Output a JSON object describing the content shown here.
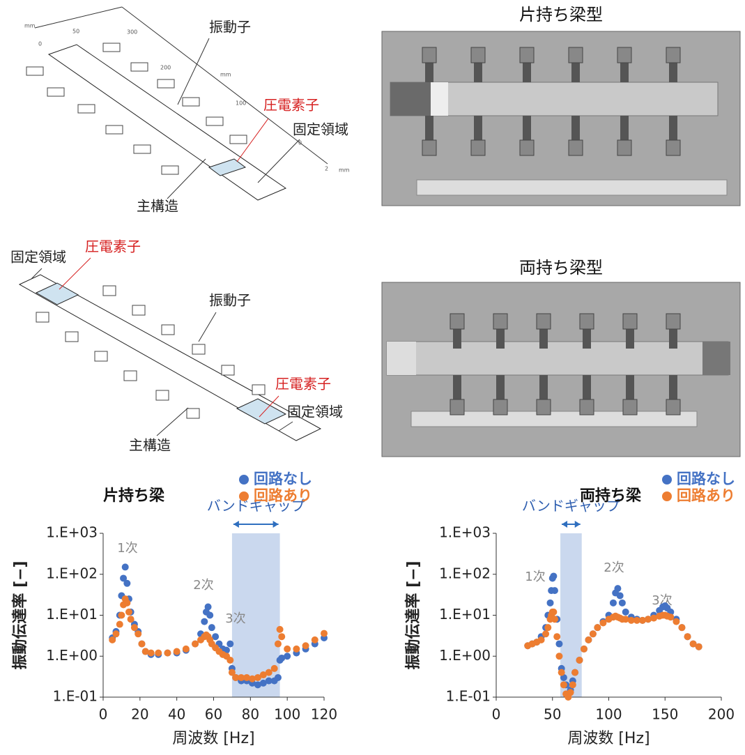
{
  "diagrams": [
    {
      "labels": [
        "振動子",
        "圧電素子",
        "固定領域",
        "主構造"
      ],
      "scale_labels": [
        "mm",
        "50",
        "300",
        "0",
        "200",
        "mm",
        "100",
        "0",
        "2",
        "mm"
      ]
    },
    {
      "labels": [
        "固定領域",
        "圧電素子",
        "振動子",
        "圧電素子",
        "固定領域",
        "主構造"
      ]
    }
  ],
  "photos": [
    {
      "title": "片持ち梁型"
    },
    {
      "title": "両持ち梁型"
    }
  ],
  "chart_data": [
    {
      "type": "scatter",
      "title": "片持ち梁",
      "x_label": "周波数 [Hz]",
      "y_label": "振動伝達率 [−]",
      "x": [
        5,
        7,
        9,
        10,
        11,
        12,
        13,
        14,
        15,
        17,
        19,
        21,
        23,
        26,
        30,
        35,
        40,
        45,
        50,
        53,
        55,
        56,
        57,
        58,
        59,
        61,
        63,
        65,
        67,
        69,
        70,
        72,
        75,
        78,
        81,
        84,
        87,
        90,
        93,
        95,
        96,
        97,
        100,
        105,
        110,
        115,
        120
      ],
      "series": [
        {
          "name": "回路なし",
          "color": "#4472c4",
          "values": [
            2.8,
            4,
            10,
            30,
            80,
            150,
            60,
            25,
            12,
            6,
            4,
            2,
            1.3,
            1.1,
            1.1,
            1.2,
            1.2,
            1.4,
            2,
            3.5,
            7,
            12,
            16,
            10,
            5,
            3,
            2,
            1.5,
            1.4,
            2,
            0.5,
            0.3,
            0.25,
            0.25,
            0.22,
            0.2,
            0.22,
            0.25,
            0.25,
            0.3,
            0.8,
            0.9,
            1,
            1.2,
            1.5,
            2,
            2.8
          ]
        },
        {
          "name": "回路あり",
          "color": "#ed7d31",
          "values": [
            2.5,
            3.5,
            6,
            10,
            18,
            25,
            20,
            12,
            8,
            5,
            3.5,
            2,
            1.3,
            1.2,
            1.2,
            1.2,
            1.3,
            1.5,
            2,
            2.5,
            3,
            3.3,
            3,
            2.5,
            2,
            1.6,
            1.3,
            1.1,
            1,
            0.8,
            0.4,
            0.3,
            0.3,
            0.3,
            0.28,
            0.3,
            0.35,
            0.4,
            0.5,
            2,
            4.5,
            3,
            1.5,
            1.5,
            1.8,
            2.5,
            3.6
          ]
        }
      ],
      "xlim": [
        0,
        120
      ],
      "xticks": [
        0,
        20,
        40,
        60,
        80,
        100,
        120
      ],
      "ylim": [
        0.1,
        1000
      ],
      "log_y": true,
      "yticks": [
        {
          "value": 0.1,
          "label": "1.E-01"
        },
        {
          "value": 1,
          "label": "1.E+00"
        },
        {
          "value": 10,
          "label": "1.E+01"
        },
        {
          "value": 100,
          "label": "1.E+02"
        },
        {
          "value": 1000,
          "label": "1.E+03"
        }
      ],
      "bandgap": {
        "label": "バンドギャップ",
        "range": [
          70,
          96
        ],
        "color": "#b4c7e7"
      },
      "annotations": [
        "1次",
        "2次",
        "3次"
      ],
      "legend": "top-right"
    },
    {
      "type": "scatter",
      "title": "両持ち梁",
      "x_label": "周波数 [Hz]",
      "y_label": "振動伝達率 [−]",
      "x": [
        28,
        32,
        36,
        40,
        44,
        46,
        48,
        49,
        50,
        51,
        52,
        54,
        56,
        58,
        60,
        62,
        64,
        66,
        68,
        70,
        74,
        78,
        82,
        86,
        90,
        95,
        100,
        104,
        106,
        108,
        110,
        112,
        115,
        120,
        125,
        130,
        135,
        140,
        145,
        148,
        150,
        152,
        155,
        160,
        165,
        170,
        175,
        180
      ],
      "series": [
        {
          "name": "回路なし",
          "color": "#4472c4",
          "values": [
            1.8,
            2,
            2.2,
            3,
            5,
            10,
            20,
            40,
            80,
            90,
            40,
            8,
            2,
            0.5,
            0.3,
            0.2,
            0.12,
            0.15,
            0.25,
            0.4,
            0.8,
            1.5,
            2.5,
            3.5,
            5,
            7,
            10,
            20,
            35,
            45,
            30,
            20,
            12,
            9,
            8,
            7.5,
            8,
            10,
            13,
            16,
            17,
            15,
            12,
            8,
            5,
            3,
            2,
            1.7
          ]
        },
        {
          "name": "回路あり",
          "color": "#ed7d31",
          "values": [
            1.8,
            2,
            2.2,
            2.5,
            3.5,
            5,
            8,
            10,
            12,
            12,
            8,
            3,
            1,
            0.4,
            0.2,
            0.12,
            0.1,
            0.13,
            0.2,
            0.4,
            0.8,
            1.5,
            2.5,
            3.5,
            5,
            6.5,
            8,
            9,
            9.5,
            9,
            8.5,
            8,
            8,
            7.5,
            7.5,
            7.5,
            8,
            8.5,
            9.5,
            10,
            10,
            9.5,
            9,
            7,
            5,
            3,
            2,
            1.7
          ]
        }
      ],
      "xlim": [
        0,
        200
      ],
      "xticks": [
        0,
        50,
        100,
        150,
        200
      ],
      "ylim": [
        0.1,
        1000
      ],
      "log_y": true,
      "yticks": [
        {
          "value": 0.1,
          "label": "1.E-01"
        },
        {
          "value": 1,
          "label": "1.E+00"
        },
        {
          "value": 10,
          "label": "1.E+01"
        },
        {
          "value": 100,
          "label": "1.E+02"
        },
        {
          "value": 1000,
          "label": "1.E+03"
        }
      ],
      "bandgap": {
        "label": "バンドギャップ",
        "range": [
          57,
          76
        ],
        "color": "#b4c7e7"
      },
      "annotations": [
        "1次",
        "2次",
        "3次"
      ],
      "legend": "top-right"
    }
  ]
}
